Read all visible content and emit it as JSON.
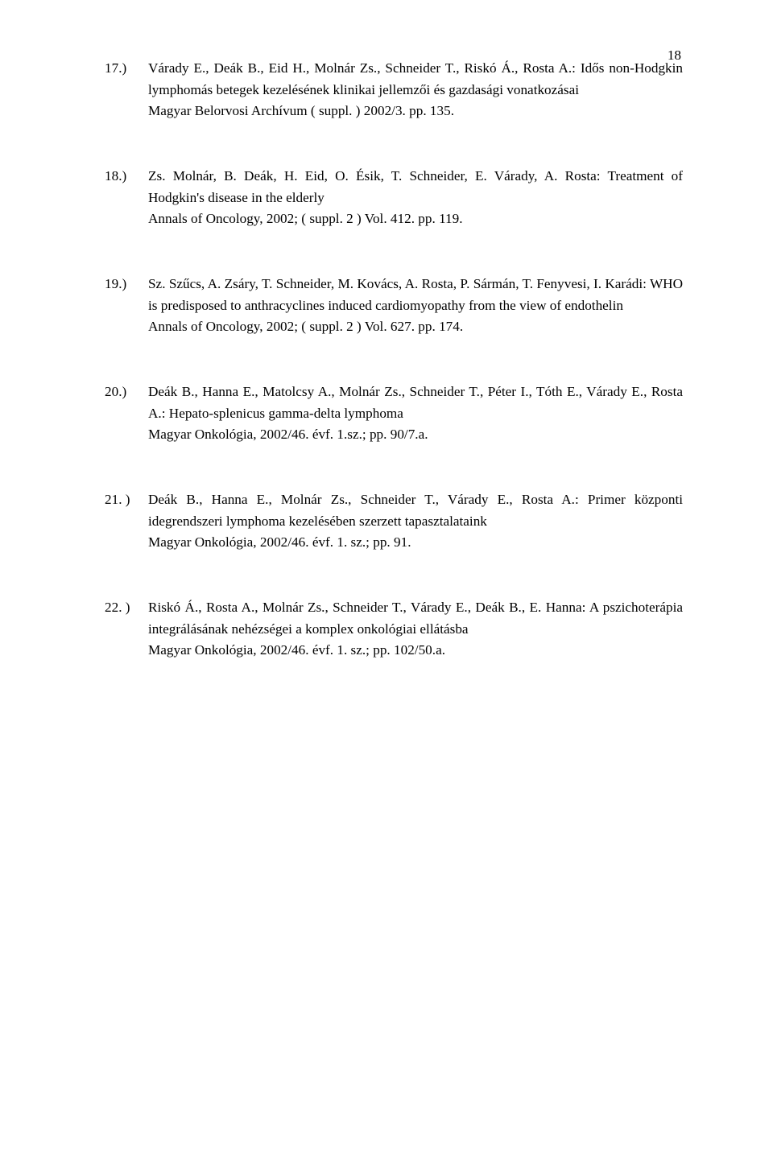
{
  "pageNumberTop": "18",
  "entries": [
    {
      "num": "17.)",
      "align": "justify",
      "lines": [
        "Várady E., Deák B., Eid H., Molnár Zs., Schneider T., Riskó Á., Rosta A.: Idős non-Hodgkin lymphomás betegek kezelésének klinikai jellemzői és gazdasági vonatkozásai",
        "Magyar Belorvosi Archívum ( suppl. ) 2002/3. pp. 135."
      ]
    },
    {
      "num": "18.)",
      "align": "justify",
      "lines": [
        "Zs. Molnár, B. Deák, H. Eid, O. Ésik, T. Schneider, E. Várady, A. Rosta: Treatment of Hodgkin's disease in the elderly",
        "Annals of Oncology, 2002; ( suppl. 2 ) Vol. 412. pp. 119."
      ]
    },
    {
      "num": "19.)",
      "align": "justify",
      "lines": [
        "Sz. Szűcs, A. Zsáry, T. Schneider, M. Kovács, A. Rosta, P. Sármán, T. Fenyvesi, I. Karádi:   WHO is predisposed to anthracyclines induced cardiomyopathy from the view of endothelin",
        "Annals of Oncology, 2002; ( suppl. 2 ) Vol. 627. pp. 174."
      ]
    },
    {
      "num": "20.)",
      "align": "justify",
      "lines": [
        "Deák B., Hanna E., Matolcsy A., Molnár Zs., Schneider T., Péter I., Tóth E., Várady E., Rosta A.: Hepato-splenicus gamma-delta lymphoma",
        "Magyar Onkológia, 2002/46. évf. 1.sz.; pp. 90/7.a."
      ]
    },
    {
      "num": "21. )",
      "align": "justify",
      "lines": [
        "Deák B., Hanna E., Molnár Zs., Schneider T., Várady E., Rosta A.: Primer központi idegrendszeri lymphoma kezelésében szerzett tapasztalataink",
        "Magyar Onkológia, 2002/46. évf. 1. sz.; pp. 91."
      ]
    },
    {
      "num": "22. )",
      "align": "justify",
      "lines": [
        "Riskó Á., Rosta A., Molnár Zs., Schneider T., Várady E., Deák B., E. Hanna: A pszichoterápia integrálásának nehézségei a komplex onkológiai ellátásba",
        "Magyar Onkológia, 2002/46. évf. 1. sz.; pp. 102/50.a."
      ]
    }
  ]
}
